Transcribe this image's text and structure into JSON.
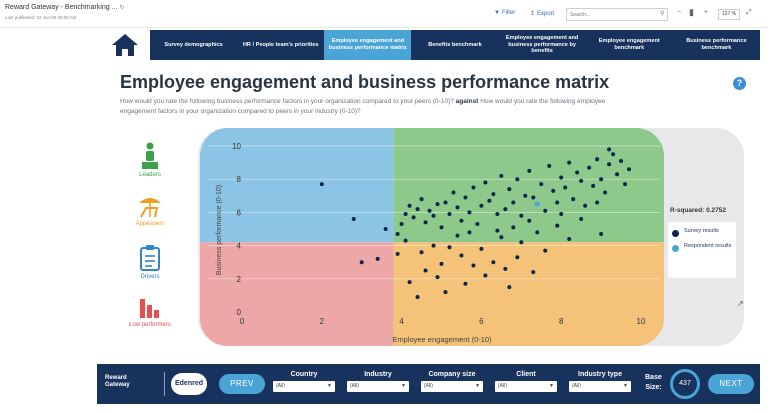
{
  "app": {
    "title": "Reward Gateway - Benchmarking ...",
    "subtitle": "Last published: 02 Jun 09 09:00 AM"
  },
  "toolbar": {
    "filter_label": "Filter",
    "export_label": "Export",
    "search_placeholder": "Search...",
    "zoom": "137 %"
  },
  "nav": {
    "tabs": [
      {
        "label": "Survey demographics",
        "active": false
      },
      {
        "label": "HR / People team's priorities",
        "active": false
      },
      {
        "label": "Employee engagement and business performance matrix",
        "active": true
      },
      {
        "label": "Benefits benchmark",
        "active": false
      },
      {
        "label": "Employee engagement and business performance by benefits",
        "active": false
      },
      {
        "label": "Employee engagement benchmark",
        "active": false
      },
      {
        "label": "Business performance benchmark",
        "active": false
      }
    ]
  },
  "page": {
    "title": "Employee engagement and business performance matrix",
    "help": "?",
    "subtitle_start": "How would you rate the following business performance factors in your organization compared to your peers (0-10)?",
    "subtitle_bold": "against",
    "subtitle_end": "How would you rate the following employee engagement factors in your organization compared to peers in your industry (0-10)?"
  },
  "segments": [
    {
      "label": "Leaders",
      "icon": "leader-podium-icon",
      "color": "#3aa04a"
    },
    {
      "label": "Appeasers",
      "icon": "beach-chair-icon",
      "color": "#f0a020"
    },
    {
      "label": "Drivers",
      "icon": "clipboard-icon",
      "color": "#2e86c8"
    },
    {
      "label": "Low performers",
      "icon": "declining-bars-icon",
      "color": "#e45050"
    }
  ],
  "colors": {
    "nav_bg": "#17325c",
    "accent": "#4aa5d6",
    "quad_top_left": "#8cc4e6",
    "quad_top_right": "#8cc98a",
    "quad_bottom_left": "#eea7a7",
    "quad_bottom_right": "#f5c27a",
    "survey_dot": "#0c2448",
    "respondent_dot": "#4aa5d6"
  },
  "chart_data": {
    "type": "scatter",
    "xlabel": "Employee engagement (0-10)",
    "ylabel": "Business performance (0-10)",
    "xlim": [
      0,
      10
    ],
    "ylim": [
      0,
      10
    ],
    "xticks": [
      0,
      2,
      4,
      6,
      8,
      10
    ],
    "yticks": [
      0,
      2,
      4,
      6,
      8,
      10
    ],
    "quadrant_split": {
      "x": 3.8,
      "y": 4.2
    },
    "r_squared_label": "R-squared: 0.2752",
    "legend": [
      {
        "label": "Survey results",
        "color": "#0c2448"
      },
      {
        "label": "Respondent results",
        "color": "#4aa5d6"
      }
    ],
    "respondent_point": [
      7.4,
      6.5
    ],
    "survey_points": [
      [
        2.0,
        7.7
      ],
      [
        2.8,
        5.6
      ],
      [
        3.0,
        3.0
      ],
      [
        3.4,
        3.2
      ],
      [
        3.6,
        5.0
      ],
      [
        3.9,
        4.7
      ],
      [
        4.0,
        5.3
      ],
      [
        4.1,
        5.9
      ],
      [
        4.2,
        6.4
      ],
      [
        4.3,
        5.7
      ],
      [
        4.4,
        6.2
      ],
      [
        4.5,
        6.8
      ],
      [
        4.6,
        5.4
      ],
      [
        4.7,
        6.1
      ],
      [
        4.8,
        5.8
      ],
      [
        4.9,
        6.5
      ],
      [
        5.0,
        5.1
      ],
      [
        5.1,
        6.6
      ],
      [
        5.2,
        5.9
      ],
      [
        5.3,
        7.2
      ],
      [
        5.4,
        6.3
      ],
      [
        5.5,
        5.5
      ],
      [
        5.6,
        6.9
      ],
      [
        5.7,
        6.0
      ],
      [
        5.8,
        7.5
      ],
      [
        5.9,
        5.3
      ],
      [
        6.0,
        6.4
      ],
      [
        6.1,
        7.8
      ],
      [
        6.2,
        6.7
      ],
      [
        6.3,
        7.1
      ],
      [
        6.4,
        5.9
      ],
      [
        6.5,
        8.2
      ],
      [
        6.6,
        6.2
      ],
      [
        6.7,
        7.4
      ],
      [
        6.8,
        6.6
      ],
      [
        6.9,
        8.0
      ],
      [
        7.0,
        5.8
      ],
      [
        7.1,
        7.0
      ],
      [
        7.2,
        8.5
      ],
      [
        7.3,
        6.9
      ],
      [
        7.5,
        7.7
      ],
      [
        7.6,
        6.1
      ],
      [
        7.7,
        8.8
      ],
      [
        7.8,
        7.3
      ],
      [
        7.9,
        6.6
      ],
      [
        8.0,
        8.1
      ],
      [
        8.1,
        7.5
      ],
      [
        8.2,
        9.0
      ],
      [
        8.3,
        6.8
      ],
      [
        8.4,
        8.4
      ],
      [
        8.5,
        7.9
      ],
      [
        8.6,
        6.4
      ],
      [
        8.7,
        8.7
      ],
      [
        8.8,
        7.6
      ],
      [
        8.9,
        9.2
      ],
      [
        9.0,
        8.0
      ],
      [
        9.1,
        7.2
      ],
      [
        9.2,
        8.9
      ],
      [
        9.3,
        9.5
      ],
      [
        9.4,
        8.3
      ],
      [
        9.5,
        9.1
      ],
      [
        9.7,
        8.6
      ],
      [
        9.2,
        9.8
      ],
      [
        9.6,
        7.7
      ],
      [
        8.9,
        6.6
      ],
      [
        8.5,
        5.6
      ],
      [
        7.9,
        5.2
      ],
      [
        7.4,
        4.8
      ],
      [
        7.0,
        4.2
      ],
      [
        6.5,
        4.5
      ],
      [
        6.0,
        3.8
      ],
      [
        5.5,
        3.4
      ],
      [
        5.0,
        2.9
      ],
      [
        4.6,
        2.5
      ],
      [
        4.2,
        1.8
      ],
      [
        4.5,
        3.6
      ],
      [
        5.2,
        3.9
      ],
      [
        5.8,
        2.8
      ],
      [
        6.3,
        3.0
      ],
      [
        6.9,
        3.3
      ],
      [
        7.6,
        3.7
      ],
      [
        8.2,
        4.4
      ],
      [
        9.0,
        4.7
      ],
      [
        4.1,
        4.3
      ],
      [
        4.8,
        4.0
      ],
      [
        5.4,
        4.6
      ],
      [
        6.1,
        2.2
      ],
      [
        6.7,
        1.5
      ],
      [
        5.1,
        1.2
      ],
      [
        4.4,
        0.9
      ],
      [
        3.9,
        3.5
      ],
      [
        6.4,
        4.9
      ],
      [
        7.2,
        5.5
      ],
      [
        5.7,
        4.8
      ],
      [
        6.8,
        5.1
      ],
      [
        8.0,
        5.9
      ],
      [
        4.9,
        2.1
      ],
      [
        5.6,
        1.7
      ],
      [
        6.6,
        2.6
      ],
      [
        7.3,
        2.4
      ]
    ]
  },
  "bottom": {
    "brand_line1": "Reward",
    "brand_line2": "Gateway",
    "partner": "Edenred",
    "prev_label": "PREV",
    "next_label": "NEXT",
    "filters": [
      {
        "label": "Country",
        "value": "(All)"
      },
      {
        "label": "Industry",
        "value": "(All)"
      },
      {
        "label": "Company size",
        "value": "(All)"
      },
      {
        "label": "Client",
        "value": "(All)"
      },
      {
        "label": "Industry type",
        "value": "(All)"
      }
    ],
    "base_size_line1": "Base",
    "base_size_line2": "Size:",
    "base_size_value": "437"
  }
}
